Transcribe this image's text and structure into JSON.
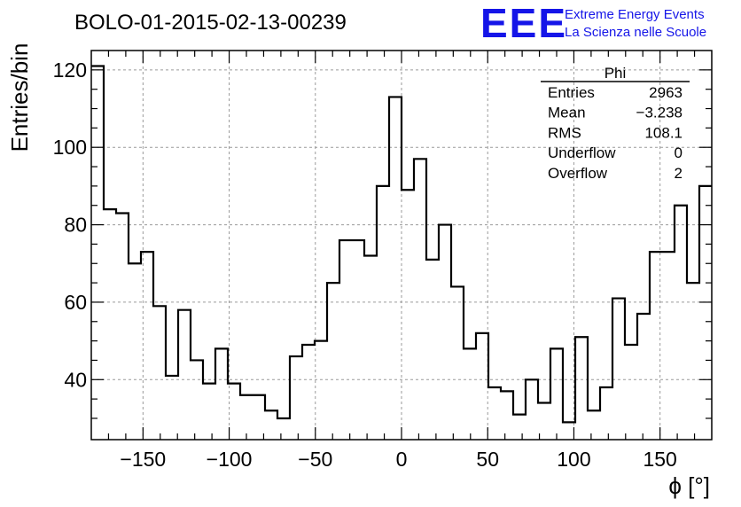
{
  "logo": {
    "mark": "EEE",
    "line1": "Extreme Energy Events",
    "line2": "La Scienza nelle Scuole",
    "color": "#1515e8"
  },
  "chart_data": {
    "type": "histogram",
    "title": "BOLO-01-2015-02-13-00239",
    "xlabel": "ϕ [°]",
    "ylabel": "Entries/bin",
    "xlim": [
      -180,
      180
    ],
    "ylim": [
      24.5,
      125
    ],
    "grid": true,
    "legend_position": "top-right",
    "xticks": [
      -150,
      -100,
      -50,
      0,
      50,
      100,
      150
    ],
    "xtick_labels": [
      "−150",
      "−100",
      "−50",
      "0",
      "50",
      "100",
      "150"
    ],
    "yticks": [
      40,
      60,
      80,
      100,
      120
    ],
    "ytick_labels": [
      "40",
      "60",
      "80",
      "100",
      "120"
    ],
    "bin_edges_start": -180,
    "bin_width": 7.2,
    "values": [
      121,
      84,
      83,
      70,
      73,
      59,
      41,
      58,
      45,
      39,
      48,
      39,
      36,
      36,
      32,
      30,
      46,
      49,
      50,
      65,
      76,
      76,
      72,
      90,
      113,
      89,
      97,
      71,
      80,
      64,
      48,
      52,
      38,
      37,
      31,
      40,
      34,
      48,
      29,
      51,
      32,
      38,
      61,
      49,
      57,
      73,
      73,
      85,
      65,
      90
    ],
    "line_color": "#000000",
    "stats": {
      "name": "Phi",
      "rows": [
        {
          "label": "Entries",
          "value": "2963"
        },
        {
          "label": "Mean",
          "value": "−3.238"
        },
        {
          "label": "RMS",
          "value": "108.1"
        },
        {
          "label": "Underflow",
          "value": "0"
        },
        {
          "label": "Overflow",
          "value": "2"
        }
      ]
    }
  }
}
